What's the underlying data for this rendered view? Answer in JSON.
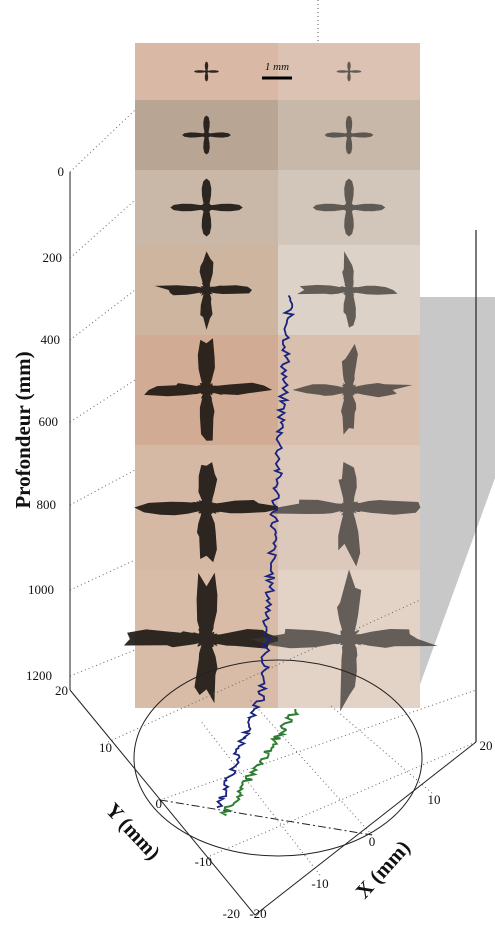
{
  "z_axis": {
    "label": "Profondeur (mm)",
    "ticks": [
      0,
      200,
      400,
      600,
      800,
      1000,
      1200
    ]
  },
  "y_axis": {
    "label": "Y (mm)",
    "ticks": [
      20,
      10,
      0,
      -10,
      -20
    ]
  },
  "x_axis": {
    "label": "X (mm)",
    "ticks": [
      -20,
      -10,
      0,
      10,
      20
    ]
  },
  "scale_bar": "1 mm"
}
